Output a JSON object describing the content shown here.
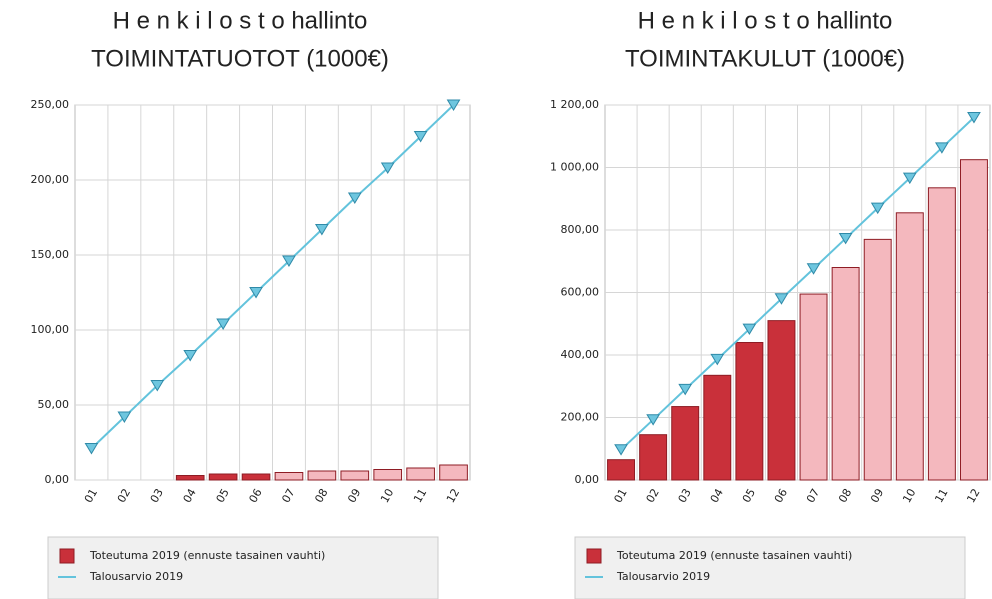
{
  "chart_data": [
    {
      "type": "combo",
      "title": "H e n k i l o s t o hallinto",
      "subtitle": "TOIMINTATUOTOT (1000€)",
      "categories": [
        "01",
        "02",
        "03",
        "04",
        "05",
        "06",
        "07",
        "08",
        "09",
        "10",
        "11",
        "12"
      ],
      "series": [
        {
          "name": "Toteutuma 2019 (ennuste tasainen vauhti)",
          "type": "bar",
          "color": "#c9303a",
          "colors": [
            "#c9303a",
            "#c9303a",
            "#c9303a",
            "#c9303a",
            "#c9303a",
            "#c9303a",
            "#f4b8be",
            "#f4b8be",
            "#f4b8be",
            "#f4b8be",
            "#f4b8be",
            "#f4b8be"
          ],
          "values": [
            0,
            0,
            0,
            3,
            4,
            4,
            5,
            6,
            6,
            7,
            8,
            10
          ]
        },
        {
          "name": "Talousarvio 2019",
          "type": "line",
          "color": "#63c3dc",
          "values": [
            21,
            42,
            63,
            83,
            104,
            125,
            146,
            167,
            188,
            208,
            229,
            250
          ]
        }
      ],
      "ylim": [
        0,
        250
      ],
      "yticks": [
        {
          "value": 0,
          "label": "0,00"
        },
        {
          "value": 50,
          "label": "50,00"
        },
        {
          "value": 100,
          "label": "100,00"
        },
        {
          "value": 150,
          "label": "150,00"
        },
        {
          "value": 200,
          "label": "200,00"
        },
        {
          "value": 250,
          "label": "250,00"
        }
      ],
      "grid": true
    },
    {
      "type": "combo",
      "title": "H e n k i l o s t o hallinto",
      "subtitle": "TOIMINTAKULUT (1000€)",
      "categories": [
        "01",
        "02",
        "03",
        "04",
        "05",
        "06",
        "07",
        "08",
        "09",
        "10",
        "11",
        "12"
      ],
      "series": [
        {
          "name": "Toteutuma 2019 (ennuste tasainen vauhti)",
          "type": "bar",
          "color": "#c9303a",
          "colors": [
            "#c9303a",
            "#c9303a",
            "#c9303a",
            "#c9303a",
            "#c9303a",
            "#c9303a",
            "#f4b8be",
            "#f4b8be",
            "#f4b8be",
            "#f4b8be",
            "#f4b8be",
            "#f4b8be"
          ],
          "values": [
            65,
            145,
            235,
            335,
            440,
            510,
            595,
            680,
            770,
            855,
            935,
            1025
          ]
        },
        {
          "name": "Talousarvio 2019",
          "type": "line",
          "color": "#63c3dc",
          "values": [
            97,
            193,
            290,
            386,
            483,
            580,
            676,
            773,
            870,
            966,
            1063,
            1160
          ]
        }
      ],
      "ylim": [
        0,
        1200
      ],
      "yticks": [
        {
          "value": 0,
          "label": "0,00"
        },
        {
          "value": 200,
          "label": "200,00"
        },
        {
          "value": 400,
          "label": "400,00"
        },
        {
          "value": 600,
          "label": "600,00"
        },
        {
          "value": 800,
          "label": "800,00"
        },
        {
          "value": 1000,
          "label": "1 000,00"
        },
        {
          "value": 1200,
          "label": "1 200,00"
        }
      ],
      "grid": true
    }
  ]
}
